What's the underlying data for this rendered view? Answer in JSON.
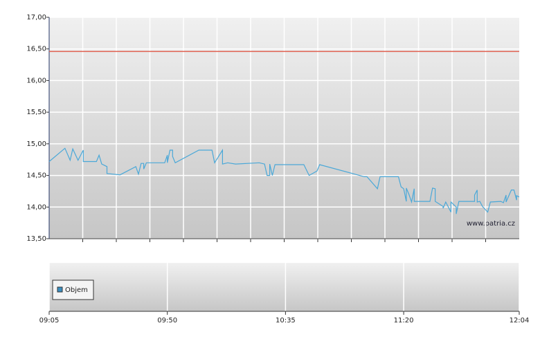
{
  "chart_data": {
    "type": "line",
    "x": [
      "09:05",
      "09:11",
      "09:13",
      "09:14",
      "09:16",
      "09:18",
      "09:18",
      "09:23",
      "09:24",
      "09:25",
      "09:27",
      "09:27",
      "09:32",
      "09:38",
      "09:39",
      "09:40",
      "09:41",
      "09:41",
      "09:42",
      "09:49",
      "09:50",
      "09:50",
      "09:51",
      "09:52",
      "09:52",
      "09:53",
      "10:02",
      "10:07",
      "10:08",
      "10:11",
      "10:11",
      "10:13",
      "10:16",
      "10:25",
      "10:27",
      "10:28",
      "10:29",
      "10:29",
      "10:30",
      "10:31",
      "10:42",
      "10:44",
      "10:47",
      "10:48",
      "11:05",
      "11:06",
      "11:10",
      "11:11",
      "11:18",
      "11:19",
      "11:20",
      "11:21",
      "11:21",
      "11:22",
      "11:23",
      "11:24",
      "11:24",
      "11:30",
      "11:31",
      "11:32",
      "11:32",
      "11:35",
      "11:35",
      "11:36",
      "11:38",
      "11:38",
      "11:40",
      "11:40",
      "11:41",
      "11:47",
      "11:47",
      "11:48",
      "11:48",
      "11:49",
      "11:50",
      "11:52",
      "11:53",
      "11:57",
      "11:58",
      "11:59",
      "11:59",
      "12:01",
      "12:02",
      "12:03",
      "12:03",
      "12:04"
    ],
    "series": [
      {
        "color": "#4aa8d8",
        "values": [
          14.72,
          14.93,
          14.74,
          14.92,
          14.74,
          14.9,
          14.72,
          14.72,
          14.82,
          14.68,
          14.64,
          14.53,
          14.51,
          14.64,
          14.52,
          14.69,
          14.69,
          14.6,
          14.7,
          14.7,
          14.82,
          14.7,
          14.9,
          14.9,
          14.8,
          14.7,
          14.9,
          14.9,
          14.7,
          14.9,
          14.68,
          14.7,
          14.68,
          14.7,
          14.68,
          14.5,
          14.5,
          14.68,
          14.5,
          14.67,
          14.67,
          14.5,
          14.57,
          14.67,
          14.48,
          14.48,
          14.29,
          14.48,
          14.48,
          14.32,
          14.29,
          14.09,
          14.3,
          14.2,
          14.08,
          14.29,
          14.09,
          14.09,
          14.3,
          14.29,
          14.09,
          14.01,
          13.98,
          14.08,
          13.92,
          14.08,
          14.0,
          13.89,
          14.09,
          14.09,
          14.19,
          14.27,
          14.08,
          14.09,
          14.01,
          13.92,
          14.08,
          14.09,
          14.07,
          14.19,
          14.08,
          14.27,
          14.27,
          14.11,
          14.18,
          14.16
        ]
      }
    ],
    "reference_line": {
      "value": 16.46,
      "color": "#e06050"
    },
    "xlim": [
      "09:05",
      "12:04"
    ],
    "xticks": [
      "09:05",
      "09:50",
      "10:35",
      "11:20",
      "12:04"
    ],
    "ylim": [
      13.5,
      17
    ],
    "yticks": [
      {
        "value": 13.5,
        "label": "13,50"
      },
      {
        "value": 14,
        "label": "14,00"
      },
      {
        "value": 14.5,
        "label": "14,50"
      },
      {
        "value": 15,
        "label": "15,00"
      },
      {
        "value": 15.5,
        "label": "15,50"
      },
      {
        "value": 16,
        "label": "16,00"
      },
      {
        "value": 16.5,
        "label": "16,50"
      },
      {
        "value": 17,
        "label": "17,00"
      }
    ],
    "grid": true,
    "watermark": "www.patria.cz",
    "volume_panel": {
      "legend": "Objem",
      "color": "#3a8fc0"
    }
  }
}
